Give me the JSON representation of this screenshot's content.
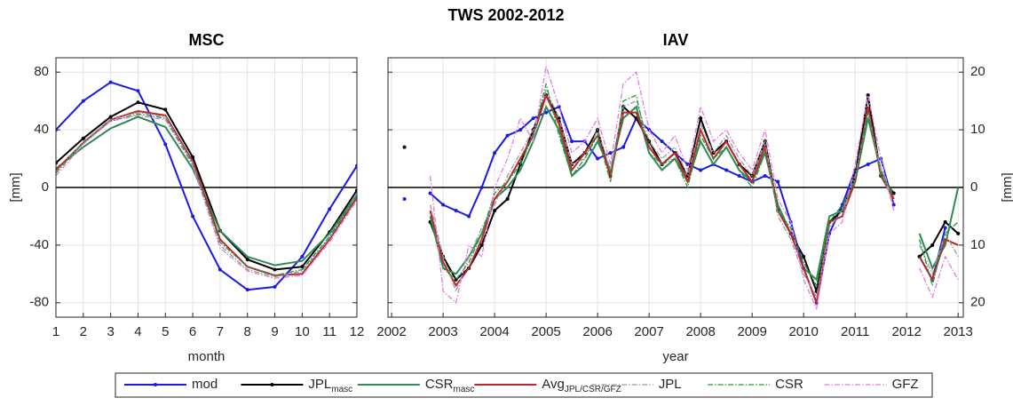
{
  "title": "TWS 2002-2012",
  "chart_data": [
    {
      "type": "line",
      "title": "MSC",
      "xlabel": "month",
      "ylabel": "[mm]",
      "yaxis_side": "left",
      "x": [
        1,
        2,
        3,
        4,
        5,
        6,
        7,
        8,
        9,
        10,
        11,
        12
      ],
      "xlim": [
        1,
        12
      ],
      "xticks": [
        1,
        2,
        3,
        4,
        5,
        6,
        7,
        8,
        9,
        10,
        11,
        12
      ],
      "ylim": [
        -90,
        90
      ],
      "yticks": [
        -80,
        -40,
        0,
        40,
        80
      ],
      "grid": true,
      "series": [
        {
          "name": "mod",
          "color": "#1a1ae6",
          "linestyle": "solid",
          "marker": true,
          "values": [
            40,
            60,
            73,
            67,
            30,
            -20,
            -57,
            -71,
            -69,
            -48,
            -15,
            15
          ]
        },
        {
          "name": "JPL",
          "subscript": "masc",
          "color": "#000000",
          "linestyle": "solid",
          "marker": true,
          "values": [
            17,
            34,
            49,
            59,
            54,
            21,
            -30,
            -50,
            -57,
            -55,
            -31,
            -2
          ]
        },
        {
          "name": "CSR",
          "subscript": "masc",
          "color": "#2e8b57",
          "linestyle": "solid",
          "marker": false,
          "values": [
            13,
            28,
            41,
            49,
            42,
            13,
            -30,
            -48,
            -54,
            -51,
            -32,
            -5
          ]
        },
        {
          "name": "Avg",
          "subscript": "JPL/CSR/GFZ",
          "color": "#c0262d",
          "linestyle": "solid",
          "marker": false,
          "values": [
            12,
            31,
            47,
            53,
            50,
            18,
            -36,
            -55,
            -61,
            -60,
            -36,
            -7
          ]
        },
        {
          "name": "JPL",
          "color": "#9a9a9a",
          "linestyle": "dashdot",
          "marker": false,
          "values": [
            10,
            32,
            47,
            52,
            49,
            17,
            -40,
            -57,
            -62,
            -58,
            -35,
            -5
          ]
        },
        {
          "name": "CSR",
          "color": "#1a9b3a",
          "linestyle": "dashdot",
          "marker": false,
          "values": [
            10,
            31,
            46,
            51,
            48,
            16,
            -38,
            -55,
            -61,
            -57,
            -34,
            -6
          ]
        },
        {
          "name": "GFZ",
          "color": "#e07de0",
          "linestyle": "dashdot",
          "marker": false,
          "values": [
            8,
            30,
            46,
            50,
            47,
            15,
            -42,
            -58,
            -63,
            -61,
            -38,
            -9
          ]
        }
      ]
    },
    {
      "type": "line",
      "title": "IAV",
      "xlabel": "year",
      "ylabel": "[mm]",
      "yaxis_side": "right",
      "x": [
        2002.25,
        2002.5,
        2002.75,
        2003.0,
        2003.25,
        2003.5,
        2003.75,
        2004.0,
        2004.25,
        2004.5,
        2004.75,
        2005.0,
        2005.25,
        2005.5,
        2005.75,
        2006.0,
        2006.25,
        2006.5,
        2006.75,
        2007.0,
        2007.25,
        2007.5,
        2007.75,
        2008.0,
        2008.25,
        2008.5,
        2008.75,
        2009.0,
        2009.25,
        2009.5,
        2009.75,
        2010.0,
        2010.25,
        2010.5,
        2010.75,
        2011.0,
        2011.25,
        2011.5,
        2011.75,
        2012.0,
        2012.25,
        2012.5,
        2012.75,
        2013.0
      ],
      "xlim": [
        2001.93,
        2013.1
      ],
      "xticks": [
        2002,
        2003,
        2004,
        2005,
        2006,
        2007,
        2008,
        2009,
        2010,
        2011,
        2012,
        2013
      ],
      "ylim": [
        -22.5,
        22.5
      ],
      "yticks": [
        {
          "value": -20,
          "label": "20"
        },
        {
          "value": -10,
          "label": "10"
        },
        0,
        10,
        20
      ],
      "grid": true,
      "series": [
        {
          "color": "#1a1ae6",
          "linestyle": "solid",
          "marker": true,
          "values": [
            -2,
            null,
            -1,
            -3,
            -4,
            -5,
            0,
            6,
            9,
            10,
            12,
            13,
            14,
            8,
            8,
            5,
            6,
            7,
            12,
            10,
            8,
            6,
            4,
            3,
            4,
            3,
            2,
            1,
            2,
            1,
            -6,
            -14,
            -20,
            -8,
            -3,
            3,
            4,
            5,
            -3,
            null,
            -12,
            -16,
            -7,
            null
          ]
        },
        {
          "color": "#000000",
          "linestyle": "solid",
          "marker": true,
          "values": [
            7,
            null,
            -6,
            -12,
            -16,
            -14,
            -10,
            -4,
            -2,
            4,
            10,
            16,
            12,
            4,
            6,
            10,
            2,
            14,
            12,
            8,
            4,
            6,
            2,
            12,
            6,
            8,
            4,
            2,
            8,
            -4,
            -8,
            -12,
            -18,
            -6,
            -4,
            2,
            16,
            2,
            -1,
            null,
            -12,
            -10,
            -6,
            -8
          ]
        },
        {
          "color": "#2e8b57",
          "linestyle": "solid",
          "marker": false,
          "values": [
            14,
            null,
            -5,
            -14,
            -15,
            -12,
            -8,
            -2,
            0,
            3,
            8,
            14,
            10,
            2,
            4,
            8,
            3,
            12,
            14,
            6,
            3,
            5,
            1,
            8,
            4,
            7,
            3,
            1,
            6,
            -3,
            -8,
            -14,
            -16,
            -5,
            -4,
            1,
            12,
            3,
            -2,
            null,
            -8,
            -14,
            -10,
            0
          ]
        },
        {
          "color": "#c0262d",
          "linestyle": "solid",
          "marker": false,
          "values": [
            6,
            null,
            -4,
            -13,
            -17,
            -14,
            -9,
            -2,
            1,
            5,
            9,
            16,
            11,
            3,
            6,
            9,
            2,
            13,
            13,
            7,
            4,
            6,
            1,
            10,
            5,
            8,
            4,
            1,
            7,
            -4,
            -8,
            -14,
            -20,
            -6,
            -5,
            1,
            14,
            2,
            -2,
            null,
            -12,
            -16,
            -9,
            -10
          ]
        },
        {
          "color": "#9a9a9a",
          "linestyle": "dashdot",
          "marker": false,
          "values": [
            8,
            null,
            -3,
            -12,
            -18,
            -12,
            -7,
            -3,
            2,
            6,
            10,
            17,
            12,
            4,
            5,
            10,
            3,
            14,
            15,
            8,
            5,
            7,
            2,
            11,
            6,
            9,
            5,
            2,
            8,
            -5,
            -9,
            -15,
            -19,
            -7,
            -4,
            2,
            13,
            3,
            -3,
            null,
            -10,
            -15,
            -8,
            -12
          ]
        },
        {
          "color": "#1a9b3a",
          "linestyle": "dashdot",
          "marker": false,
          "values": [
            15,
            null,
            -5,
            -14,
            -16,
            -13,
            -8,
            -1,
            1,
            4,
            9,
            18,
            9,
            2,
            5,
            9,
            1,
            15,
            16,
            6,
            4,
            5,
            0,
            9,
            5,
            7,
            3,
            0,
            6,
            -4,
            -7,
            -13,
            -17,
            -6,
            -3,
            1,
            13,
            2,
            -1,
            null,
            -9,
            -17,
            -8,
            -6
          ]
        },
        {
          "color": "#e07de0",
          "linestyle": "dashdot",
          "marker": false,
          "values": [
            12,
            null,
            2,
            -18,
            -20,
            -10,
            -12,
            0,
            5,
            12,
            8,
            21,
            14,
            6,
            8,
            12,
            4,
            18,
            20,
            10,
            6,
            9,
            3,
            14,
            8,
            10,
            6,
            3,
            10,
            -2,
            -6,
            -16,
            -21,
            -8,
            -6,
            4,
            16,
            5,
            -4,
            null,
            -14,
            -19,
            -12,
            -16
          ]
        }
      ]
    }
  ]
}
